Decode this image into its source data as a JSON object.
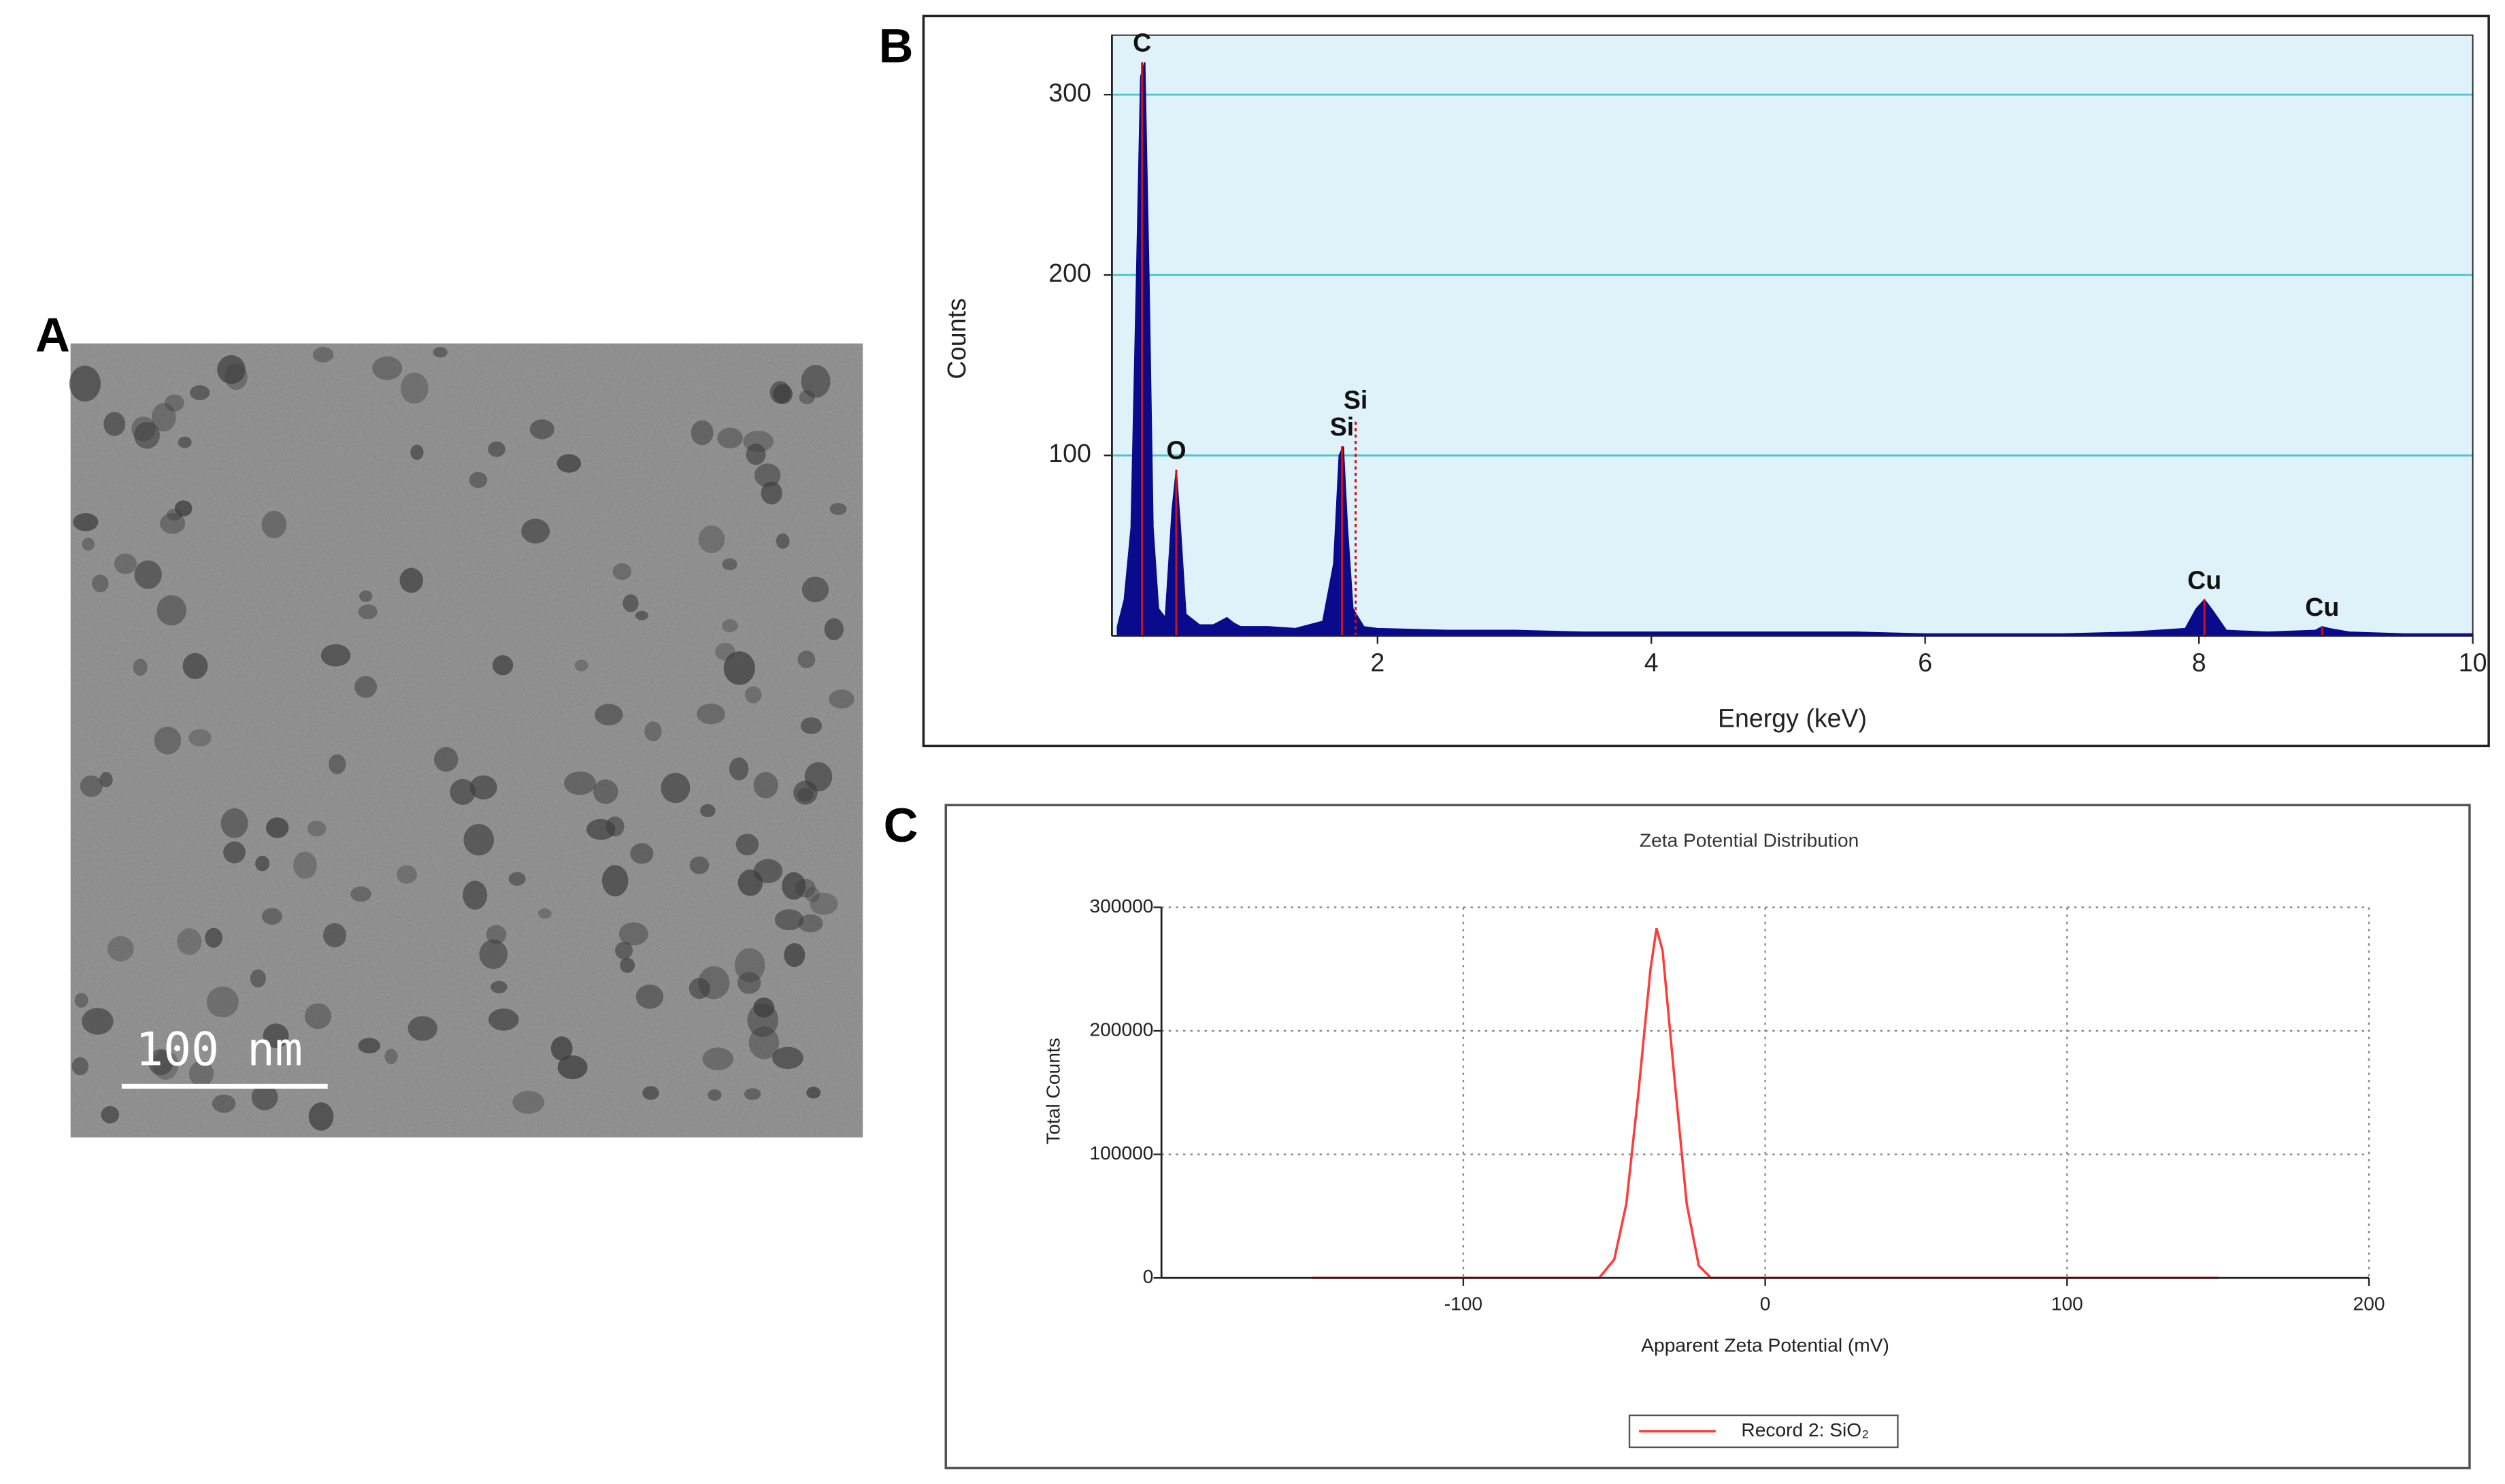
{
  "panel_labels": [
    "A",
    "B",
    "C"
  ],
  "image": {
    "scale_bar": "100 nm"
  },
  "chart_data": [
    {
      "type": "area",
      "x_label": "Energy (keV)",
      "y_label": "Counts",
      "color": "#0a0a8c",
      "background": "#dff2fa",
      "grid_color": "#4cc3cf",
      "x": [
        0.1,
        0.15,
        0.2,
        0.24,
        0.27,
        0.3,
        0.33,
        0.36,
        0.4,
        0.45,
        0.5,
        0.53,
        0.56,
        0.6,
        0.7,
        0.8,
        0.9,
        0.95,
        1.0,
        1.2,
        1.4,
        1.6,
        1.68,
        1.72,
        1.75,
        1.78,
        1.82,
        1.9,
        2.0,
        2.5,
        3,
        3.5,
        4,
        4.5,
        5,
        5.5,
        6,
        6.5,
        7,
        7.5,
        7.9,
        7.98,
        8.04,
        8.1,
        8.2,
        8.5,
        8.85,
        8.9,
        8.95,
        9.1,
        9.5,
        10
      ],
      "values": [
        5,
        20,
        60,
        200,
        310,
        318,
        200,
        60,
        15,
        10,
        70,
        92,
        60,
        12,
        6,
        6,
        10,
        7,
        5,
        5,
        4,
        8,
        40,
        100,
        105,
        60,
        15,
        5,
        4,
        3,
        3,
        2,
        2,
        2,
        2,
        2,
        1,
        1,
        1,
        2,
        4,
        15,
        20,
        14,
        3,
        2,
        3,
        5,
        4,
        2,
        1,
        1
      ],
      "peak_markers": [
        {
          "label": "C",
          "x": 0.28,
          "y": 318
        },
        {
          "label": "O",
          "x": 0.53,
          "y": 92
        },
        {
          "label": "Si",
          "x": 1.74,
          "y": 105
        },
        {
          "label": "Si",
          "x": 1.84,
          "y": 120
        },
        {
          "label": "Cu",
          "x": 8.04,
          "y": 20
        },
        {
          "label": "Cu",
          "x": 8.9,
          "y": 5
        }
      ],
      "xlim": [
        0.06,
        10
      ],
      "ylim": [
        0,
        333
      ],
      "xticks": [
        2,
        4,
        6,
        8,
        10
      ],
      "yticks": [
        100,
        200,
        300
      ],
      "grid": true
    },
    {
      "type": "line",
      "title": "Zeta Potential Distribution",
      "x_label": "Apparent Zeta Potential (mV)",
      "y_label": "Total Counts",
      "x": [
        -150,
        -55,
        -50,
        -46,
        -42,
        -38,
        -36,
        -34,
        -30,
        -26,
        -22,
        -18,
        150
      ],
      "series": [
        {
          "name": "Record 2: SiO₂",
          "color": "#ff3b3b",
          "values": [
            0,
            0,
            15000,
            60000,
            150000,
            250000,
            283000,
            265000,
            160000,
            60000,
            10000,
            0,
            0
          ]
        }
      ],
      "xlim": [
        -200,
        200
      ],
      "ylim": [
        0,
        300000
      ],
      "xticks": [
        -100,
        0,
        100,
        200
      ],
      "yticks": [
        0,
        100000,
        200000,
        300000
      ],
      "grid": true,
      "legend": "bottom"
    }
  ]
}
